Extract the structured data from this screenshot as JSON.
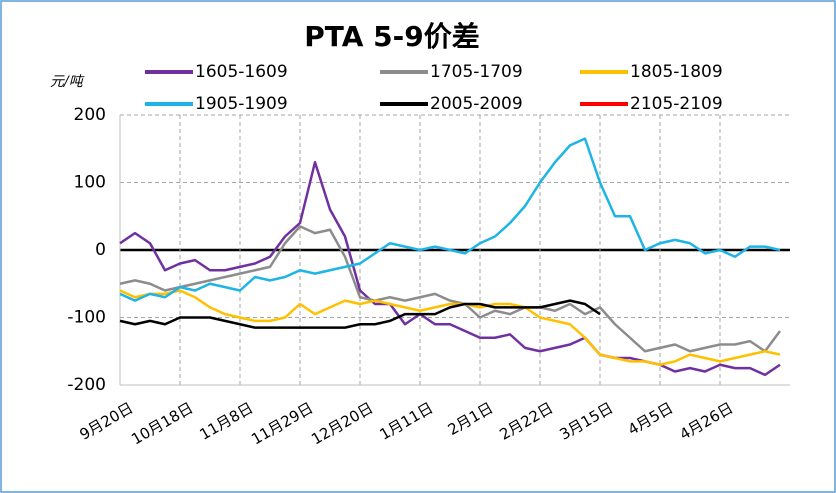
{
  "chart_data": {
    "type": "line",
    "title": "PTA 5-9价差",
    "ylabel": "元/吨",
    "categories": [
      "9月20日",
      null,
      null,
      null,
      "10月18日",
      null,
      null,
      null,
      "11月8日",
      null,
      null,
      null,
      "11月29日",
      null,
      null,
      null,
      "12月20日",
      null,
      null,
      null,
      "1月11日",
      null,
      null,
      null,
      "2月1日",
      null,
      null,
      null,
      "2月22日",
      null,
      null,
      null,
      "3月15日",
      null,
      null,
      null,
      "4月5日",
      null,
      null,
      null,
      "4月26日",
      null,
      null,
      null,
      null
    ],
    "ylim": [
      -200,
      200
    ],
    "yticks": [
      -200,
      -100,
      0,
      100,
      200
    ],
    "grid": true,
    "series": [
      {
        "name": "1605-1609",
        "color": "#7030a0",
        "values": [
          10,
          25,
          10,
          -30,
          -20,
          -15,
          -30,
          -30,
          -25,
          -20,
          -10,
          20,
          40,
          130,
          60,
          20,
          -60,
          -80,
          -80,
          -110,
          -95,
          -110,
          -110,
          -120,
          -130,
          -130,
          -125,
          -145,
          -150,
          -145,
          -140,
          -130,
          -155,
          -160,
          -160,
          -165,
          -170,
          -180,
          -175,
          -180,
          -170,
          -175,
          -175,
          -185,
          -170
        ]
      },
      {
        "name": "1705-1709",
        "color": "#8c8c8c",
        "values": [
          -50,
          -45,
          -50,
          -60,
          -55,
          -50,
          -45,
          -40,
          -35,
          -30,
          -25,
          10,
          35,
          25,
          30,
          -10,
          -70,
          -75,
          -70,
          -75,
          -70,
          -65,
          -75,
          -80,
          -100,
          -90,
          -95,
          -85,
          -85,
          -90,
          -80,
          -95,
          -85,
          -110,
          -130,
          -150,
          -145,
          -140,
          -150,
          -145,
          -140,
          -140,
          -135,
          -150,
          -120
        ]
      },
      {
        "name": "1805-1809",
        "color": "#ffc000",
        "values": [
          -60,
          -70,
          -65,
          -65,
          -60,
          -70,
          -85,
          -95,
          -100,
          -105,
          -105,
          -100,
          -80,
          -95,
          -85,
          -75,
          -80,
          -75,
          -80,
          -85,
          -90,
          -85,
          -80,
          -80,
          -85,
          -80,
          -80,
          -85,
          -100,
          -105,
          -110,
          -130,
          -155,
          -160,
          -165,
          -165,
          -170,
          -165,
          -155,
          -160,
          -165,
          -160,
          -155,
          -150,
          -155
        ]
      },
      {
        "name": "1905-1909",
        "color": "#1eb4e6",
        "values": [
          -65,
          -75,
          -65,
          -70,
          -55,
          -60,
          -50,
          -55,
          -60,
          -40,
          -45,
          -40,
          -30,
          -35,
          -30,
          -25,
          -20,
          -5,
          10,
          5,
          0,
          5,
          0,
          -5,
          10,
          20,
          40,
          65,
          100,
          130,
          155,
          165,
          100,
          50,
          50,
          0,
          10,
          15,
          10,
          -5,
          0,
          -10,
          5,
          5,
          0
        ]
      },
      {
        "name": "2005-2009",
        "color": "#000000",
        "values": [
          -105,
          -110,
          -105,
          -110,
          -100,
          -100,
          -100,
          -105,
          -110,
          -115,
          -115,
          -115,
          -115,
          -115,
          -115,
          -115,
          -110,
          -110,
          -105,
          -95,
          -95,
          -95,
          -85,
          -80,
          -80,
          -85,
          -85,
          -85,
          -85,
          -80,
          -75,
          -80,
          -95,
          null,
          null,
          null,
          null,
          null,
          null,
          null,
          null,
          null,
          null,
          null,
          null
        ]
      },
      {
        "name": "2105-2109",
        "color": "#ff0000",
        "values": [
          null,
          null,
          null,
          null,
          null,
          null,
          null,
          null,
          null,
          null,
          null,
          null,
          null,
          null,
          null,
          null,
          null,
          null,
          null,
          null,
          null,
          null,
          null,
          null,
          null,
          null,
          null,
          null,
          null,
          null,
          null,
          null,
          null,
          null,
          null,
          null,
          null,
          null,
          null,
          null,
          null,
          null,
          null,
          null,
          null
        ]
      }
    ]
  }
}
